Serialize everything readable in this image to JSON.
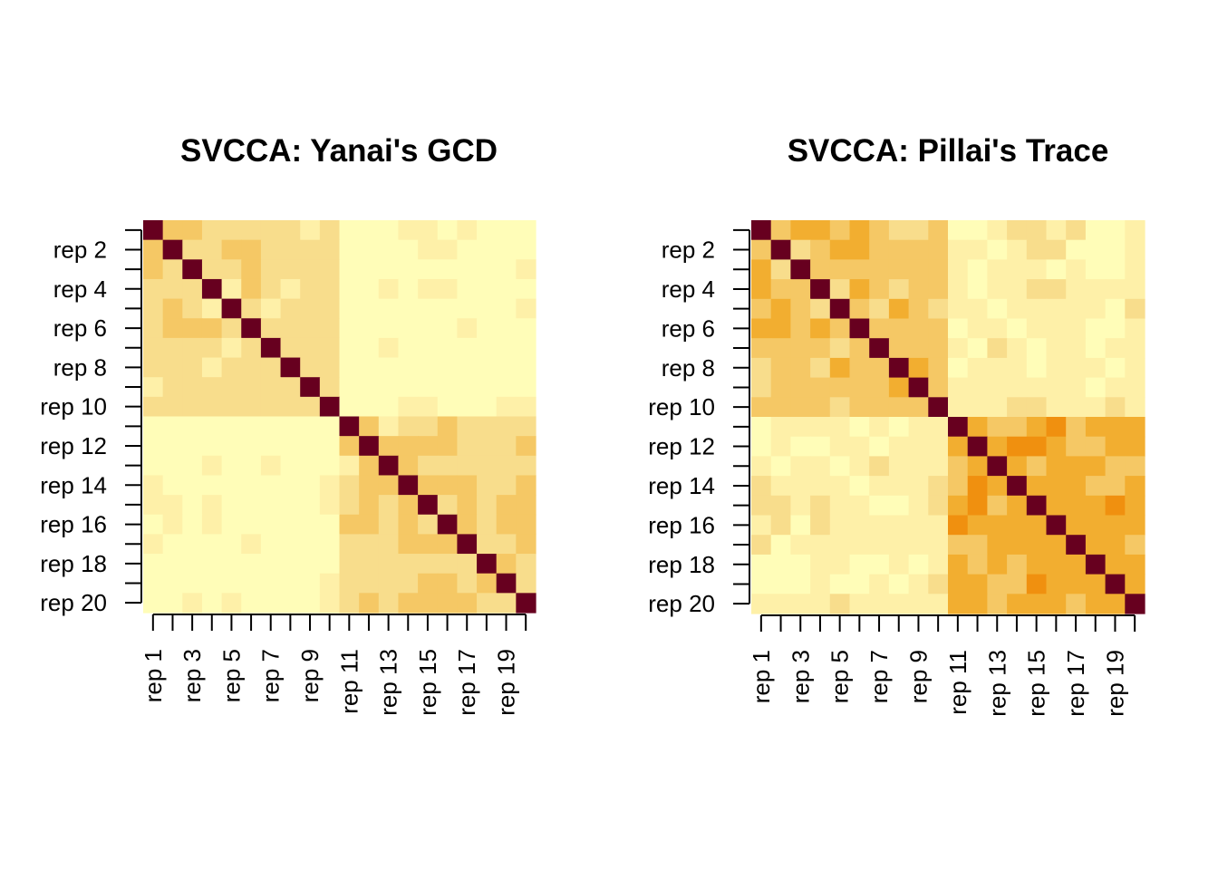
{
  "palette": {
    "levels": [
      "#67001F",
      "#F0900F",
      "#F2AE30",
      "#F5C865",
      "#F8DD8C",
      "#FEF0A8",
      "#FFFDB8"
    ],
    "legend": "0 = diagonal (darkest, highest similarity) ... 6 = palest"
  },
  "chart_data": [
    {
      "type": "heatmap",
      "title": "SVCCA: Yanai's GCD",
      "xlabel": "",
      "ylabel": "",
      "labels": [
        "rep 1",
        "rep 2",
        "rep 3",
        "rep 4",
        "rep 5",
        "rep 6",
        "rep 7",
        "rep 8",
        "rep 9",
        "rep 10",
        "rep 11",
        "rep 12",
        "rep 13",
        "rep 14",
        "rep 15",
        "rep 16",
        "rep 17",
        "rep 18",
        "rep 19",
        "rep 20"
      ],
      "x_tick_labels": [
        "rep 1",
        "rep 3",
        "rep 5",
        "rep 7",
        "rep 9",
        "rep 11",
        "rep 13",
        "rep 15",
        "rep 17",
        "rep 19"
      ],
      "y_tick_labels": [
        "rep 2",
        "rep 4",
        "rep 6",
        "rep 8",
        "rep 10",
        "rep 12",
        "rep 14",
        "rep 16",
        "rep 18",
        "rep 20"
      ],
      "value_scale": "color level 0 (dark red, high) to 6 (pale yellow, low)",
      "values": [
        [
          0,
          3,
          3,
          4,
          4,
          4,
          4,
          4,
          5,
          4,
          6,
          6,
          6,
          5,
          5,
          6,
          5,
          6,
          6,
          6
        ],
        [
          3,
          0,
          4,
          4,
          3,
          3,
          4,
          4,
          4,
          4,
          6,
          6,
          6,
          6,
          5,
          5,
          6,
          6,
          6,
          6
        ],
        [
          3,
          4,
          0,
          4,
          4,
          3,
          4,
          4,
          4,
          4,
          6,
          6,
          6,
          6,
          6,
          6,
          6,
          6,
          6,
          5
        ],
        [
          4,
          4,
          4,
          0,
          5,
          3,
          4,
          5,
          4,
          4,
          6,
          6,
          5,
          6,
          5,
          5,
          6,
          6,
          6,
          6
        ],
        [
          4,
          3,
          4,
          5,
          0,
          4,
          5,
          4,
          4,
          4,
          6,
          6,
          6,
          6,
          6,
          6,
          6,
          6,
          6,
          5
        ],
        [
          4,
          3,
          3,
          3,
          4,
          0,
          4,
          4,
          4,
          4,
          6,
          6,
          6,
          6,
          6,
          6,
          5,
          6,
          6,
          6
        ],
        [
          4,
          4,
          4,
          4,
          5,
          4,
          0,
          4,
          4,
          4,
          6,
          6,
          5,
          6,
          6,
          6,
          6,
          6,
          6,
          6
        ],
        [
          4,
          4,
          4,
          5,
          4,
          4,
          4,
          0,
          4,
          4,
          6,
          6,
          6,
          6,
          6,
          6,
          6,
          6,
          6,
          6
        ],
        [
          5,
          4,
          4,
          4,
          4,
          4,
          4,
          4,
          0,
          4,
          6,
          6,
          6,
          6,
          6,
          6,
          6,
          6,
          6,
          6
        ],
        [
          4,
          4,
          4,
          4,
          4,
          4,
          4,
          4,
          4,
          0,
          6,
          6,
          6,
          5,
          5,
          6,
          6,
          6,
          5,
          5
        ],
        [
          6,
          6,
          6,
          6,
          6,
          6,
          6,
          6,
          6,
          6,
          0,
          3,
          5,
          4,
          4,
          3,
          4,
          4,
          4,
          4
        ],
        [
          6,
          6,
          6,
          6,
          6,
          6,
          6,
          6,
          6,
          6,
          3,
          0,
          3,
          3,
          3,
          3,
          4,
          4,
          4,
          3
        ],
        [
          6,
          6,
          6,
          5,
          6,
          6,
          5,
          6,
          6,
          6,
          5,
          3,
          0,
          3,
          4,
          4,
          4,
          4,
          4,
          4
        ],
        [
          5,
          6,
          6,
          6,
          6,
          6,
          6,
          6,
          6,
          5,
          4,
          3,
          3,
          0,
          3,
          3,
          3,
          4,
          4,
          3
        ],
        [
          5,
          5,
          6,
          5,
          6,
          6,
          6,
          6,
          6,
          5,
          4,
          3,
          4,
          3,
          0,
          4,
          3,
          4,
          3,
          3
        ],
        [
          6,
          5,
          6,
          5,
          6,
          6,
          6,
          6,
          6,
          6,
          3,
          3,
          4,
          3,
          4,
          0,
          3,
          4,
          3,
          3
        ],
        [
          5,
          6,
          6,
          6,
          6,
          5,
          6,
          6,
          6,
          6,
          4,
          4,
          4,
          3,
          3,
          3,
          0,
          4,
          4,
          3
        ],
        [
          6,
          6,
          6,
          6,
          6,
          6,
          6,
          6,
          6,
          6,
          4,
          4,
          4,
          4,
          4,
          4,
          4,
          0,
          3,
          4
        ],
        [
          6,
          6,
          6,
          6,
          6,
          6,
          6,
          6,
          6,
          5,
          4,
          4,
          4,
          4,
          3,
          3,
          4,
          3,
          0,
          4
        ],
        [
          6,
          6,
          5,
          6,
          5,
          6,
          6,
          6,
          6,
          5,
          4,
          3,
          4,
          3,
          3,
          3,
          3,
          4,
          4,
          0
        ]
      ]
    },
    {
      "type": "heatmap",
      "title": "SVCCA: Pillai's Trace",
      "xlabel": "",
      "ylabel": "",
      "labels": [
        "rep 1",
        "rep 2",
        "rep 3",
        "rep 4",
        "rep 5",
        "rep 6",
        "rep 7",
        "rep 8",
        "rep 9",
        "rep 10",
        "rep 11",
        "rep 12",
        "rep 13",
        "rep 14",
        "rep 15",
        "rep 16",
        "rep 17",
        "rep 18",
        "rep 19",
        "rep 20"
      ],
      "x_tick_labels": [
        "rep 1",
        "rep 3",
        "rep 5",
        "rep 7",
        "rep 9",
        "rep 11",
        "rep 13",
        "rep 15",
        "rep 17",
        "rep 19"
      ],
      "y_tick_labels": [
        "rep 2",
        "rep 4",
        "rep 6",
        "rep 8",
        "rep 10",
        "rep 12",
        "rep 14",
        "rep 16",
        "rep 18",
        "rep 20"
      ],
      "value_scale": "color level 0 (dark red, high) to 6 (pale yellow, low)",
      "values": [
        [
          0,
          3,
          2,
          2,
          3,
          2,
          3,
          4,
          4,
          3,
          6,
          6,
          5,
          4,
          4,
          5,
          4,
          6,
          6,
          5
        ],
        [
          3,
          0,
          4,
          3,
          2,
          2,
          3,
          3,
          3,
          3,
          5,
          5,
          6,
          5,
          4,
          4,
          6,
          6,
          6,
          5
        ],
        [
          2,
          4,
          0,
          3,
          3,
          3,
          3,
          3,
          3,
          3,
          5,
          6,
          5,
          5,
          5,
          6,
          5,
          6,
          6,
          5
        ],
        [
          2,
          3,
          3,
          0,
          4,
          2,
          3,
          4,
          3,
          3,
          5,
          6,
          5,
          5,
          4,
          4,
          5,
          5,
          5,
          5
        ],
        [
          3,
          2,
          3,
          4,
          0,
          3,
          4,
          2,
          3,
          4,
          5,
          5,
          6,
          5,
          5,
          5,
          5,
          5,
          6,
          4
        ],
        [
          2,
          2,
          3,
          2,
          3,
          0,
          3,
          3,
          3,
          3,
          6,
          5,
          5,
          6,
          5,
          5,
          5,
          6,
          6,
          5
        ],
        [
          3,
          3,
          3,
          3,
          4,
          3,
          0,
          3,
          3,
          3,
          5,
          6,
          4,
          5,
          6,
          5,
          5,
          6,
          5,
          5
        ],
        [
          4,
          3,
          3,
          4,
          2,
          3,
          3,
          0,
          2,
          3,
          6,
          5,
          5,
          5,
          6,
          5,
          5,
          5,
          6,
          5
        ],
        [
          4,
          3,
          3,
          3,
          3,
          3,
          3,
          2,
          0,
          3,
          5,
          5,
          5,
          5,
          5,
          5,
          5,
          6,
          5,
          5
        ],
        [
          3,
          3,
          3,
          3,
          4,
          3,
          3,
          3,
          3,
          0,
          5,
          5,
          5,
          4,
          4,
          5,
          5,
          5,
          4,
          5
        ],
        [
          6,
          5,
          5,
          5,
          5,
          6,
          5,
          6,
          5,
          5,
          0,
          2,
          3,
          3,
          2,
          1,
          3,
          2,
          2,
          2
        ],
        [
          6,
          5,
          6,
          6,
          5,
          5,
          6,
          5,
          5,
          5,
          2,
          0,
          2,
          1,
          1,
          2,
          3,
          3,
          2,
          2
        ],
        [
          5,
          6,
          5,
          5,
          6,
          5,
          4,
          5,
          5,
          5,
          3,
          2,
          0,
          2,
          3,
          2,
          2,
          2,
          3,
          3
        ],
        [
          4,
          5,
          5,
          5,
          5,
          6,
          5,
          5,
          5,
          4,
          3,
          1,
          2,
          0,
          2,
          2,
          2,
          3,
          3,
          2
        ],
        [
          4,
          4,
          5,
          4,
          5,
          5,
          6,
          6,
          5,
          4,
          2,
          1,
          3,
          2,
          0,
          2,
          2,
          2,
          1,
          2
        ],
        [
          5,
          4,
          6,
          4,
          5,
          5,
          5,
          5,
          5,
          5,
          1,
          2,
          2,
          2,
          2,
          0,
          2,
          2,
          2,
          2
        ],
        [
          4,
          6,
          5,
          5,
          5,
          5,
          5,
          5,
          5,
          5,
          3,
          3,
          2,
          2,
          2,
          2,
          0,
          2,
          2,
          3
        ],
        [
          6,
          6,
          6,
          5,
          5,
          6,
          6,
          5,
          6,
          5,
          2,
          3,
          2,
          3,
          2,
          2,
          2,
          0,
          2,
          2
        ],
        [
          6,
          6,
          6,
          5,
          6,
          6,
          5,
          6,
          5,
          4,
          2,
          2,
          3,
          3,
          1,
          2,
          2,
          2,
          0,
          2
        ],
        [
          5,
          5,
          5,
          5,
          4,
          5,
          5,
          5,
          5,
          5,
          2,
          2,
          3,
          2,
          2,
          2,
          3,
          2,
          2,
          0
        ]
      ]
    }
  ]
}
